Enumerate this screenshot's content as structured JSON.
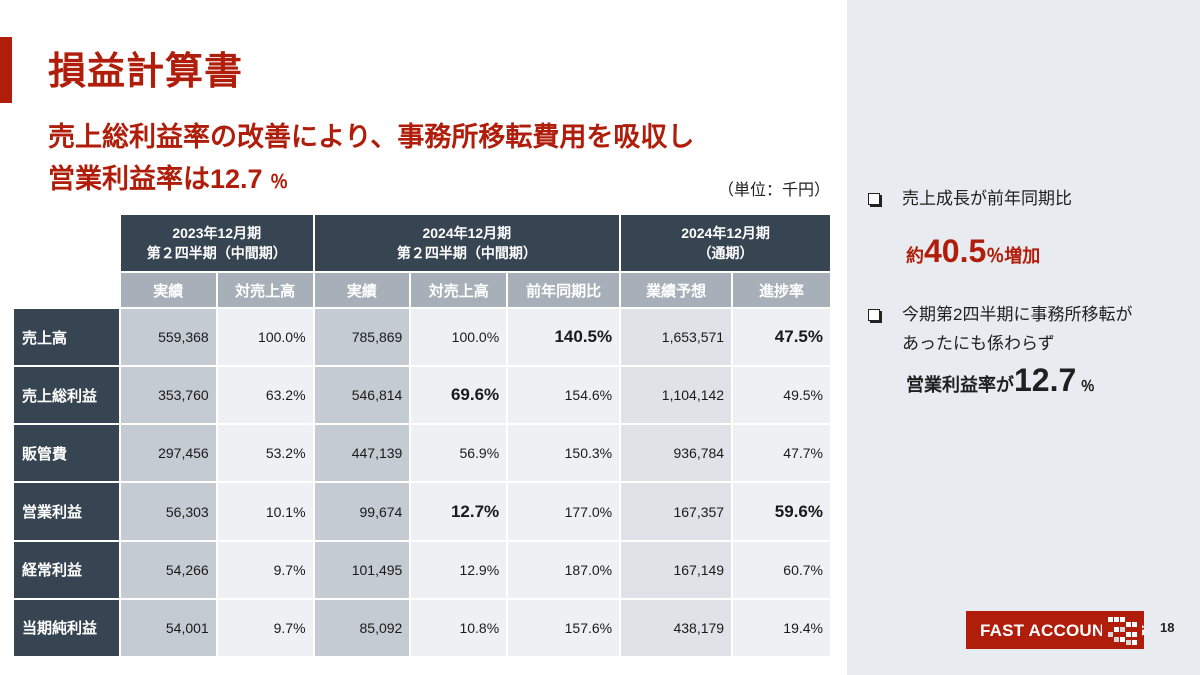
{
  "title": "損益計算書",
  "headline": {
    "line1": "売上総利益率の改善により、事務所移転費用を吸収し",
    "line2_pre": "営業利益率は12.7",
    "line2_unit": "％"
  },
  "unit_label": "（単位：千円）",
  "table": {
    "periods": [
      {
        "line1": "2023年12月期",
        "line2": "第２四半期（中間期）"
      },
      {
        "line1": "2024年12月期",
        "line2": "第２四半期（中間期）"
      },
      {
        "line1": "2024年12月期",
        "line2": "（通期）"
      }
    ],
    "subheaders": [
      "実績",
      "対売上高",
      "実績",
      "対売上高",
      "前年同期比",
      "業績予想",
      "進捗率"
    ],
    "rows": [
      {
        "label": "売上高",
        "values": [
          "559,368",
          "100.0%",
          "785,869",
          "100.0%",
          "140.5%",
          "1,653,571",
          "47.5%"
        ]
      },
      {
        "label": "売上総利益",
        "values": [
          "353,760",
          "63.2%",
          "546,814",
          "69.6%",
          "154.6%",
          "1,104,142",
          "49.5%"
        ]
      },
      {
        "label": "販管費",
        "values": [
          "297,456",
          "53.2%",
          "447,139",
          "56.9%",
          "150.3%",
          "936,784",
          "47.7%"
        ]
      },
      {
        "label": "営業利益",
        "values": [
          "56,303",
          "10.1%",
          "99,674",
          "12.7%",
          "177.0%",
          "167,357",
          "59.6%"
        ]
      },
      {
        "label": "経常利益",
        "values": [
          "54,266",
          "9.7%",
          "101,495",
          "12.9%",
          "187.0%",
          "167,149",
          "60.7%"
        ]
      },
      {
        "label": "当期純利益",
        "values": [
          "54,001",
          "9.7%",
          "85,092",
          "10.8%",
          "157.6%",
          "438,179",
          "19.4%"
        ]
      }
    ]
  },
  "bullets": [
    {
      "text_lines": [
        "売上成長が前年同期比"
      ],
      "highlight": {
        "pre": "約",
        "num": "40.5",
        "post": "％増加"
      }
    },
    {
      "text_lines": [
        "今期第2四半期に事務所移転が",
        "あったにも係わらず"
      ],
      "highlight": {
        "pre": "営業利益率が",
        "num": "12.7",
        "post": "％"
      }
    }
  ],
  "logo_text": "FAST ACCOUNTING",
  "page_number": "18",
  "colors": {
    "brand_red": "#b01e0b",
    "header_navy": "#374553",
    "subheader_gray": "#a7b0b9",
    "panel_bg": "#e8ebef"
  }
}
